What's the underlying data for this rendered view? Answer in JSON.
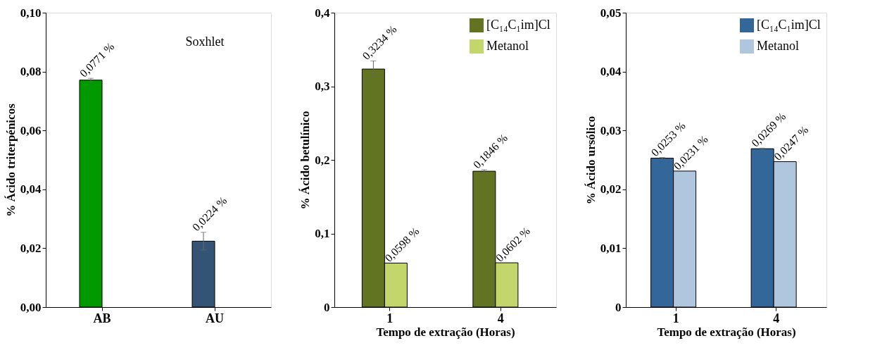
{
  "chart_data": [
    {
      "type": "bar",
      "ylabel": "%  Ácido triterpénicos",
      "categories": [
        "AB",
        "AU"
      ],
      "values": [
        0.0771,
        0.0224
      ],
      "colors": [
        "#009900",
        "#345476"
      ],
      "errors": [
        0.0006,
        0.003
      ],
      "value_labels": [
        "0,0771 %",
        "0,0224 %"
      ],
      "annotations": [
        "Soxhlet"
      ],
      "ylim": [
        0,
        0.1
      ],
      "yticks": [
        {
          "value": 0,
          "label": "0,00"
        },
        {
          "value": 0.02,
          "label": "0,02"
        },
        {
          "value": 0.04,
          "label": "0,04"
        },
        {
          "value": 0.06,
          "label": "0,06"
        },
        {
          "value": 0.08,
          "label": "0,08"
        },
        {
          "value": 0.1,
          "label": "0,10"
        }
      ],
      "grid": false,
      "legend": false
    },
    {
      "type": "bar",
      "ylabel": "%  Ácido betulínico",
      "xlabel": "Tempo de extração (Horas)",
      "categories": [
        "1",
        "4"
      ],
      "series": [
        {
          "name": "[C₁₄C₁im]Cl",
          "color": "#627321",
          "values": [
            0.3234,
            0.1846
          ],
          "errors": [
            0.011,
            0.002
          ],
          "value_labels": [
            "0,3234 %",
            "0,1846 %"
          ]
        },
        {
          "name": "Metanol",
          "color": "#c3d66b",
          "values": [
            0.0598,
            0.0602
          ],
          "value_labels": [
            "0,0598 %",
            "0,0602 %"
          ]
        }
      ],
      "ylim": [
        0,
        0.4
      ],
      "yticks": [
        0,
        {
          "value": 0.1,
          "label": "0,1"
        },
        {
          "value": 0.2,
          "label": "0,2"
        },
        {
          "value": 0.3,
          "label": "0,3"
        },
        {
          "value": 0.4,
          "label": "0,4"
        }
      ],
      "grid": false,
      "legend": "top right"
    },
    {
      "type": "bar",
      "ylabel": "%  Ácido ursólico",
      "xlabel": "Tempo de extração (Horas)",
      "categories": [
        "1",
        "4"
      ],
      "series": [
        {
          "name": "[C₁₄C₁im]Cl",
          "color": "#336699",
          "values": [
            0.0253,
            0.0269
          ],
          "errors": [
            0.0001,
            0.0001
          ],
          "value_labels": [
            "0,0253 %",
            "0,0269 %"
          ]
        },
        {
          "name": "Metanol",
          "color": "#afc6de",
          "values": [
            0.0231,
            0.0247
          ],
          "value_labels": [
            "0,0231 %",
            "0,0247 %"
          ]
        }
      ],
      "ylim": [
        0,
        0.05
      ],
      "yticks": [
        0,
        {
          "value": 0.01,
          "label": "0,01"
        },
        {
          "value": 0.02,
          "label": "0,02"
        },
        {
          "value": 0.03,
          "label": "0,03"
        },
        {
          "value": 0.04,
          "label": "0,04"
        },
        {
          "value": 0.05,
          "label": "0,05"
        }
      ],
      "grid": false,
      "legend": "top right"
    }
  ]
}
